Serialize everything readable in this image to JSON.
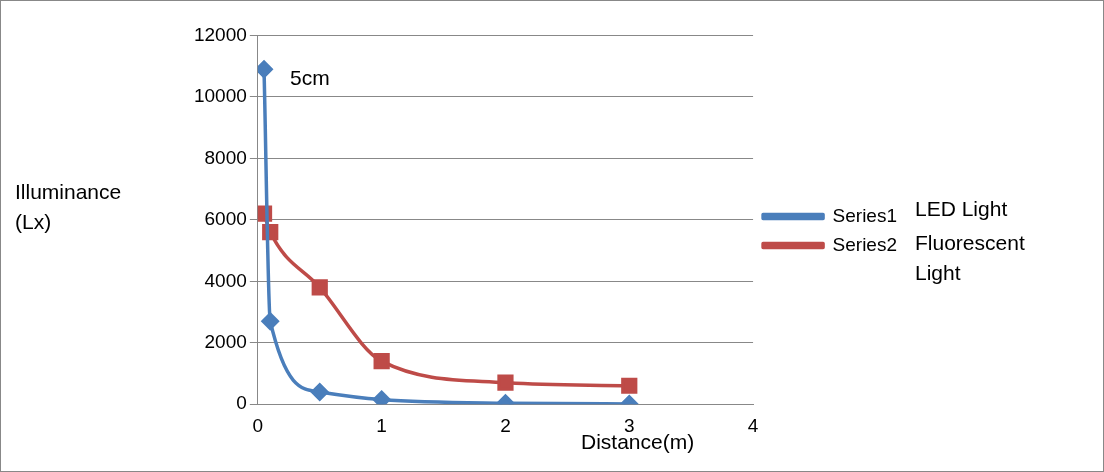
{
  "chart_data": {
    "type": "line",
    "xlabel": "Distance(m)",
    "ylabel": "Illuminance (Lx)",
    "xlim": [
      0,
      4
    ],
    "xticks": [
      0,
      1,
      2,
      3,
      4
    ],
    "ylim": [
      0,
      12000
    ],
    "yticks": [
      0,
      2000,
      4000,
      6000,
      8000,
      10000,
      12000
    ],
    "grid": "y",
    "legend": "right",
    "line_style": "solid",
    "series": [
      {
        "name": "Series1",
        "color": "#4a7ebb",
        "marker": "diamond",
        "x": [
          0.05,
          0.1,
          0.5,
          1,
          2,
          3
        ],
        "values": [
          10900,
          2700,
          400,
          150,
          30,
          10
        ]
      },
      {
        "name": "Series2",
        "color": "#be4b48",
        "marker": "square",
        "x": [
          0.05,
          0.1,
          0.5,
          1,
          2,
          3
        ],
        "values": [
          6200,
          5600,
          3800,
          1400,
          700,
          600
        ]
      }
    ],
    "annotations": [
      {
        "text": "5cm",
        "x": 0.05,
        "y": 10900
      },
      "LED Light",
      "Fluorescent Light"
    ]
  }
}
